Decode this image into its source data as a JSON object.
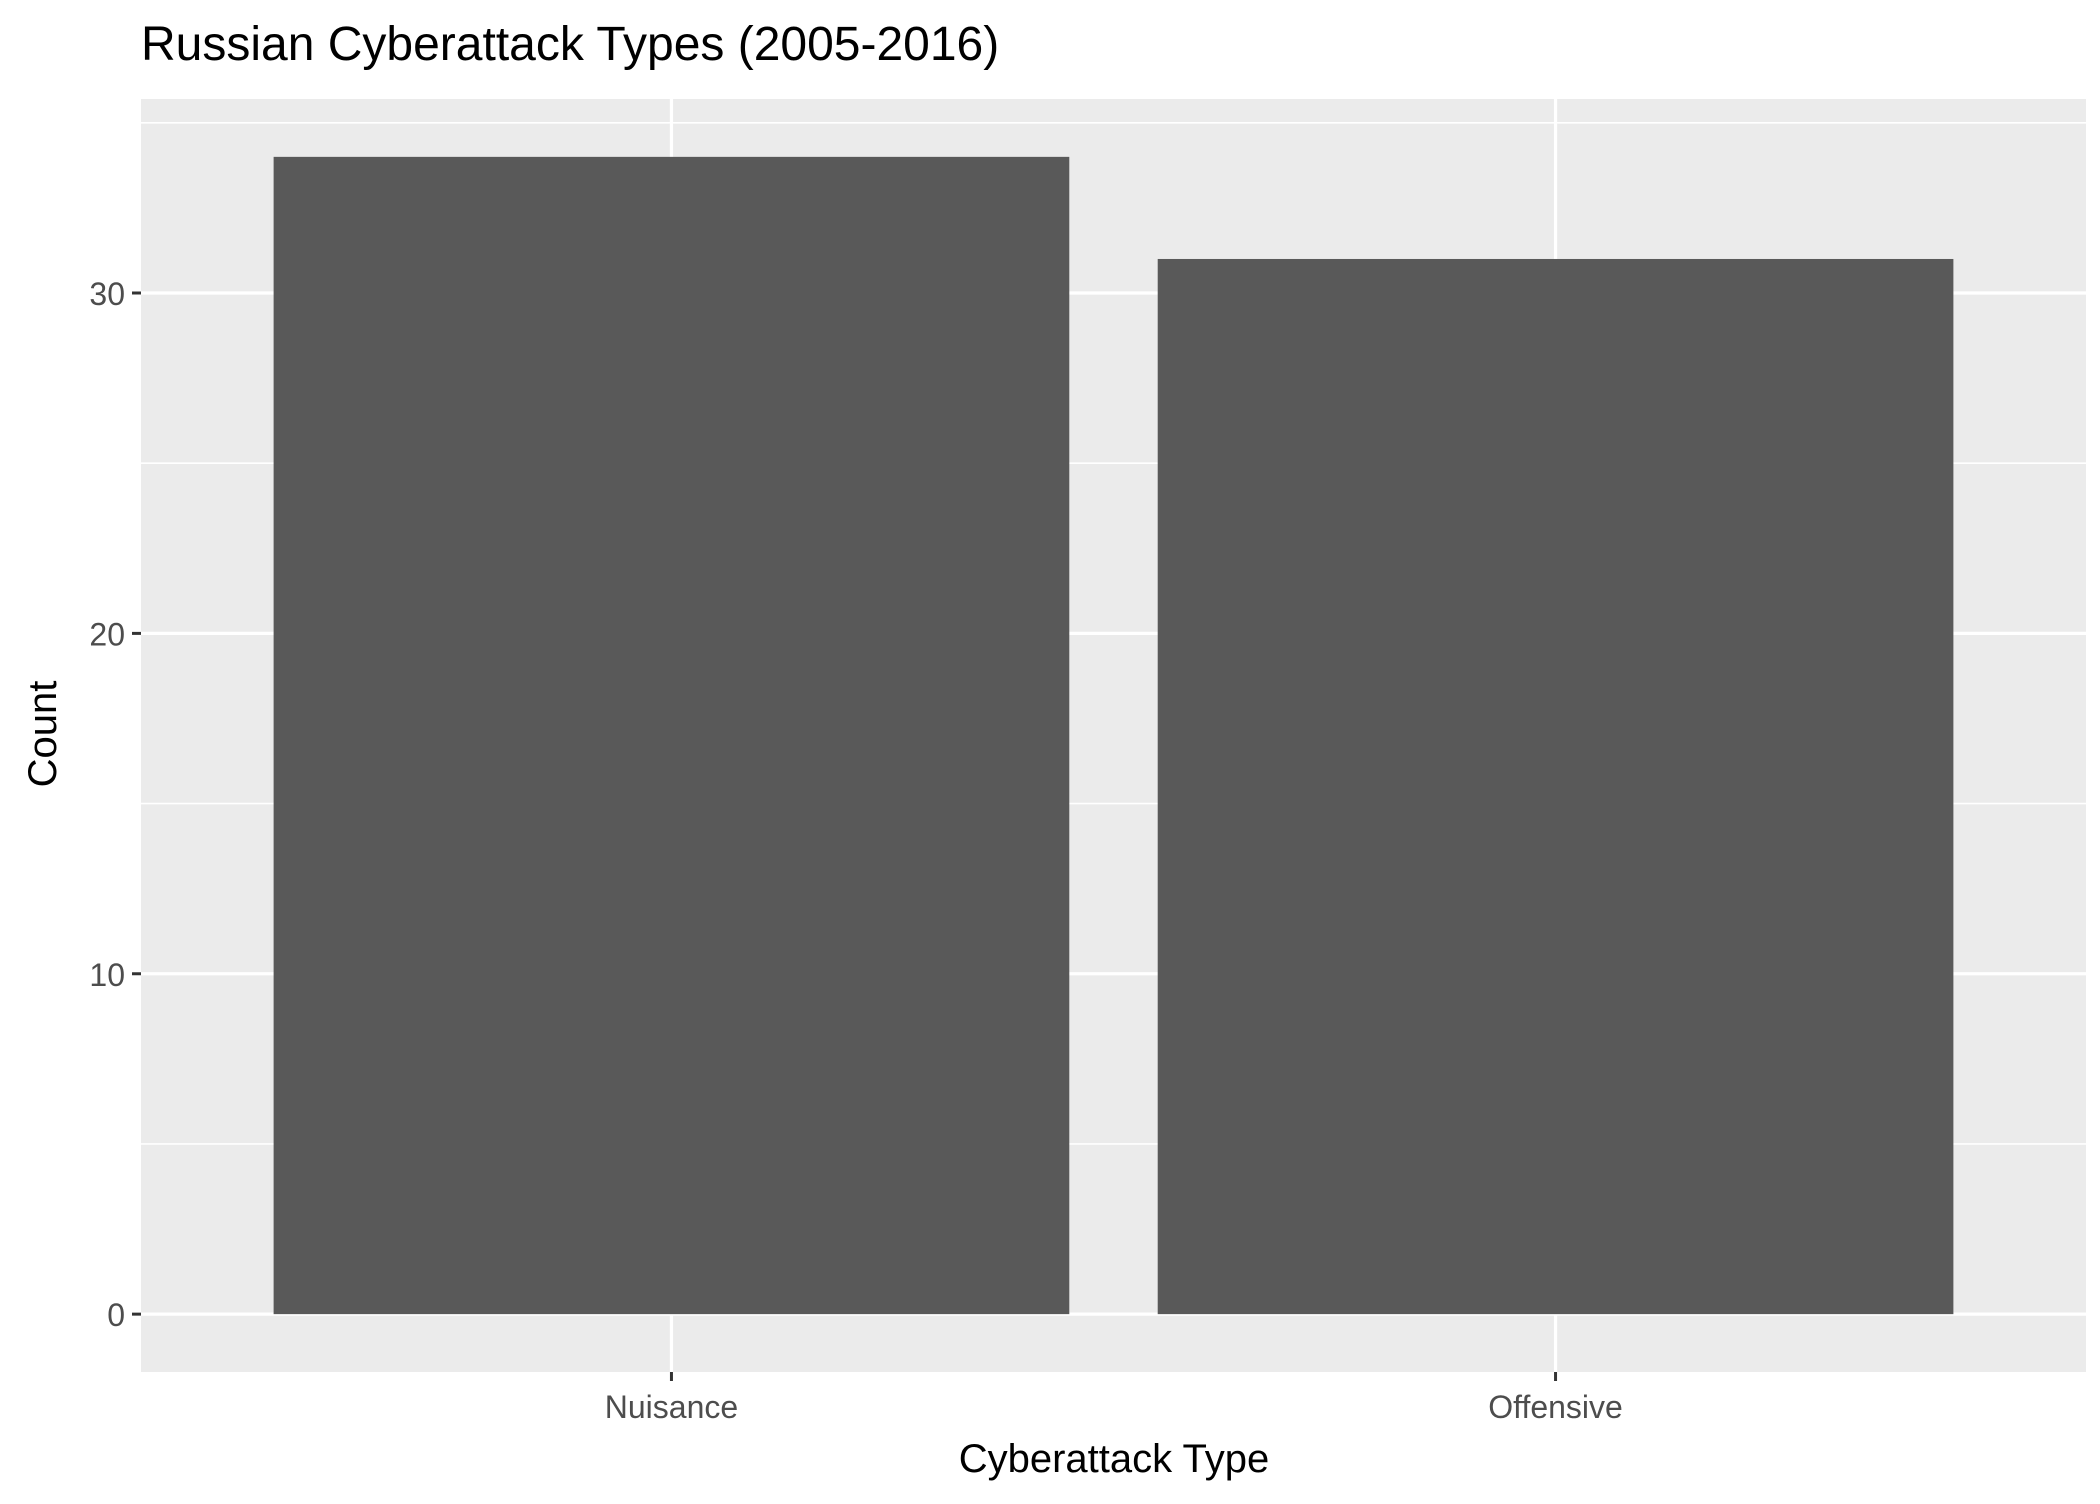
{
  "chart_data": {
    "type": "bar",
    "title": "Russian Cyberattack Types (2005-2016)",
    "xlabel": "Cyberattack Type",
    "ylabel": "Count",
    "categories": [
      "Nuisance",
      "Offensive"
    ],
    "values": [
      34,
      31
    ],
    "ylim": [
      -1.7,
      35.7
    ],
    "y_ticks": [
      0,
      10,
      20,
      30
    ],
    "y_minor_ticks": [
      5,
      15,
      25,
      35
    ],
    "grid": true,
    "legend": "none",
    "colors": {
      "bar": "#595959",
      "panel_background": "#ebebeb",
      "grid": "#ffffff",
      "tick_label": "#4d4d4d",
      "axis_title": "#000000"
    }
  }
}
